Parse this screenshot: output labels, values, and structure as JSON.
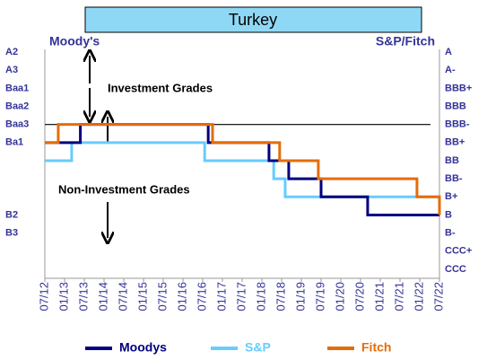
{
  "chart_data": {
    "type": "step-line",
    "title": "Turkey",
    "left_axis_title": "Moody's",
    "right_axis_title": "S&P/Fitch",
    "annotations": [
      "Investment Grades",
      "Non-Investment Grades"
    ],
    "threshold": 10,
    "ylim": [
      5.7,
      18.5
    ],
    "yticks": [
      {
        "value": 6,
        "label": "A2"
      },
      {
        "value": 7,
        "label": "A3"
      },
      {
        "value": 8,
        "label": "Baa1"
      },
      {
        "value": 9,
        "label": "Baa2"
      },
      {
        "value": 10,
        "label": "Baa3"
      },
      {
        "value": 11,
        "label": "Ba1"
      },
      {
        "value": 15,
        "label": "B2"
      },
      {
        "value": 16,
        "label": "B3"
      }
    ],
    "y2ticks": [
      {
        "value": 6,
        "label": "A"
      },
      {
        "value": 7,
        "label": "A-"
      },
      {
        "value": 8,
        "label": "BBB+"
      },
      {
        "value": 9,
        "label": "BBB"
      },
      {
        "value": 10,
        "label": "BBB-"
      },
      {
        "value": 11,
        "label": "BB+"
      },
      {
        "value": 12,
        "label": "BB"
      },
      {
        "value": 13,
        "label": "BB-"
      },
      {
        "value": 14,
        "label": "B+"
      },
      {
        "value": 15,
        "label": "B"
      },
      {
        "value": 16,
        "label": "B-"
      },
      {
        "value": 17,
        "label": "CCC+"
      },
      {
        "value": 18,
        "label": "CCC"
      }
    ],
    "xlim": [
      2012.5,
      2022.5
    ],
    "xticks": [
      {
        "value": 2012.5,
        "label": "07/12"
      },
      {
        "value": 2013,
        "label": "01/13"
      },
      {
        "value": 2013.5,
        "label": "07/13"
      },
      {
        "value": 2014,
        "label": "01/14"
      },
      {
        "value": 2014.5,
        "label": "07/14"
      },
      {
        "value": 2015,
        "label": "01/15"
      },
      {
        "value": 2015.5,
        "label": "07/15"
      },
      {
        "value": 2016,
        "label": "01/16"
      },
      {
        "value": 2016.5,
        "label": "07/16"
      },
      {
        "value": 2017,
        "label": "01/17"
      },
      {
        "value": 2017.5,
        "label": "07/17"
      },
      {
        "value": 2018,
        "label": "01/18"
      },
      {
        "value": 2018.5,
        "label": "07/18"
      },
      {
        "value": 2019,
        "label": "01/19"
      },
      {
        "value": 2019.5,
        "label": "07/19"
      },
      {
        "value": 2020,
        "label": "01/20"
      },
      {
        "value": 2020.5,
        "label": "07/20"
      },
      {
        "value": 2021,
        "label": "01/21"
      },
      {
        "value": 2021.5,
        "label": "07/21"
      },
      {
        "value": 2022,
        "label": "01/22"
      },
      {
        "value": 2022.5,
        "label": "07/22"
      }
    ],
    "series": [
      {
        "name": "Moodys",
        "color": "#000080",
        "x": [
          2012.5,
          2013.4,
          2016.64,
          2018.18,
          2018.68,
          2019.5,
          2020.68,
          2022.5
        ],
        "values": [
          11,
          10,
          11,
          12,
          13,
          14,
          15,
          15
        ]
      },
      {
        "name": "S&P",
        "color": "#66ccff",
        "x": [
          2012.5,
          2013.18,
          2016.55,
          2018.3,
          2018.59,
          2022.5
        ],
        "values": [
          12,
          11,
          12,
          13,
          14,
          15
        ]
      },
      {
        "name": "Fitch",
        "color": "#e46c0a",
        "x": [
          2012.5,
          2012.84,
          2016.75,
          2018.45,
          2019.43,
          2021.93,
          2022.5
        ],
        "values": [
          11,
          10,
          11,
          12,
          13,
          14,
          15
        ]
      }
    ]
  }
}
